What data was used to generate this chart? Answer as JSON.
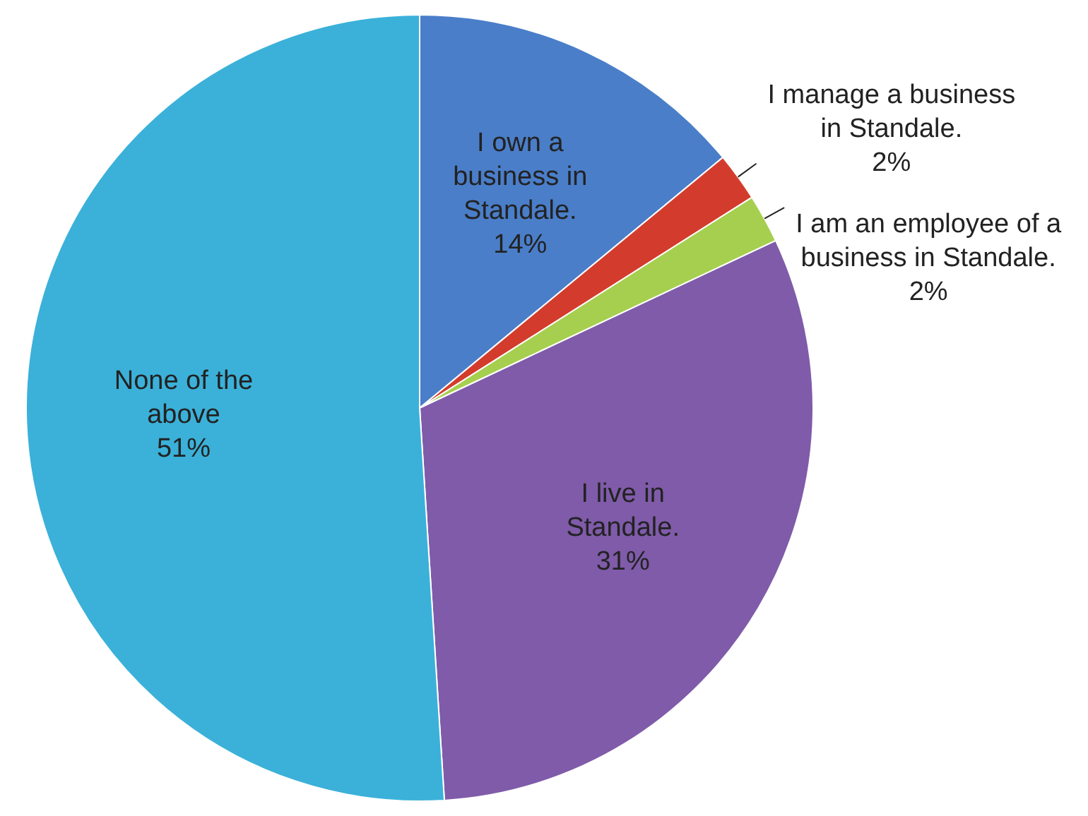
{
  "chart_data": {
    "type": "pie",
    "legend": false,
    "categories": [
      "I own a business in Standale.",
      "I manage a business in Standale.",
      "I am an employee of a business in Standale.",
      "I live in Standale.",
      "None of the above"
    ],
    "values": [
      14,
      2,
      2,
      31,
      51
    ],
    "value_labels": [
      "14%",
      "2%",
      "2%",
      "31%",
      "51%"
    ],
    "colors": [
      "#4a7ec9",
      "#d33c2c",
      "#a6cf4f",
      "#7f5ba9",
      "#3bb1d9"
    ]
  }
}
